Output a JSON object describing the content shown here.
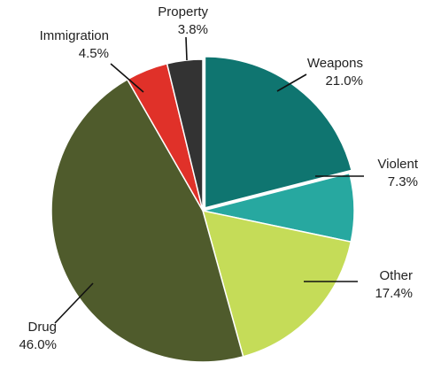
{
  "chart_data": {
    "type": "pie",
    "title": "",
    "slices": [
      {
        "label": "Weapons",
        "value": 21.0,
        "display": "21.0%",
        "color": "#0f7570"
      },
      {
        "label": "Violent",
        "value": 7.3,
        "display": "7.3%",
        "color": "#27a8a0"
      },
      {
        "label": "Other",
        "value": 17.4,
        "display": "17.4%",
        "color": "#c5dc58"
      },
      {
        "label": "Drug",
        "value": 46.0,
        "display": "46.0%",
        "color": "#4f5b2c"
      },
      {
        "label": "Immigration",
        "value": 4.5,
        "display": "4.5%",
        "color": "#e03129"
      },
      {
        "label": "Property",
        "value": 3.8,
        "display": "3.8%",
        "color": "#333333"
      }
    ],
    "exploded_slice": "Weapons",
    "legend": "none",
    "labels": "outside with leader lines"
  }
}
